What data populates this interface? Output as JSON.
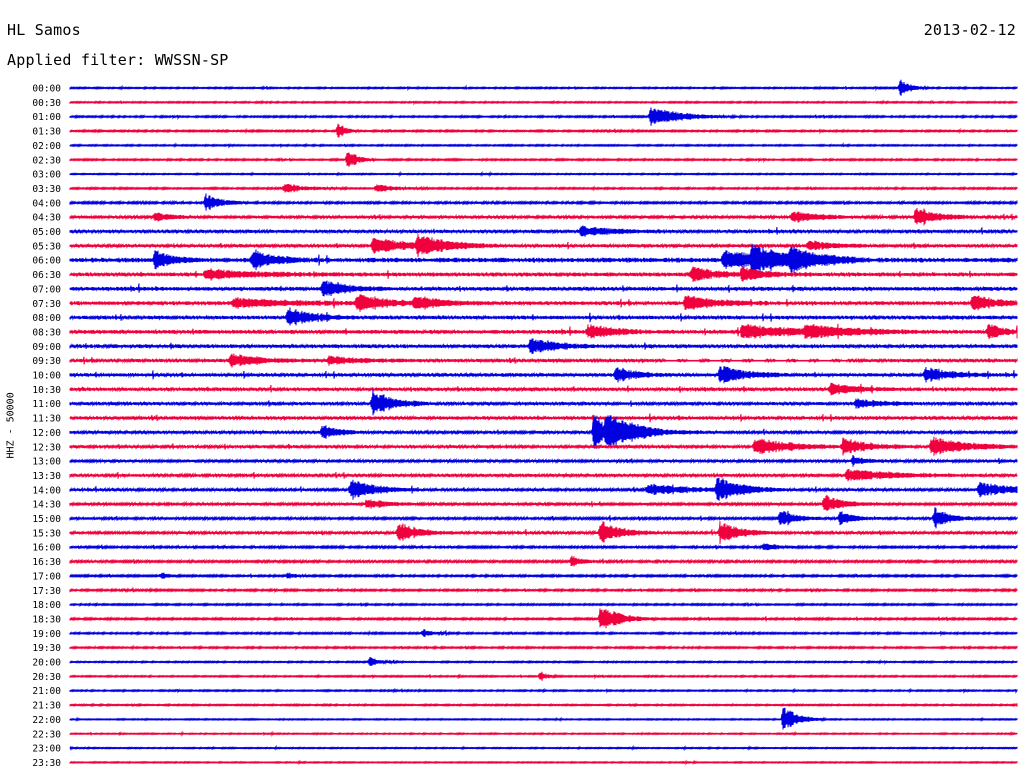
{
  "header": {
    "station": "HL Samos",
    "date": "2013-02-12",
    "filter_text": "Applied filter: WWSSN-SP"
  },
  "chart_data": {
    "type": "line",
    "title": "HL Samos",
    "subtitle": "Applied filter: WWSSN-SP",
    "ylabel": "HHZ - 50000",
    "xlabel": "",
    "grid": false,
    "trace_colors": [
      "#0000e0",
      "#f0003c"
    ],
    "row_labels": [
      "00:00",
      "00:30",
      "01:00",
      "01:30",
      "02:00",
      "02:30",
      "03:00",
      "03:30",
      "04:00",
      "04:30",
      "05:00",
      "05:30",
      "06:00",
      "06:30",
      "07:00",
      "07:30",
      "08:00",
      "08:30",
      "09:00",
      "09:30",
      "10:00",
      "10:30",
      "11:00",
      "11:30",
      "12:00",
      "12:30",
      "13:00",
      "13:30",
      "14:00",
      "14:30",
      "15:00",
      "15:30",
      "16:00",
      "16:30",
      "17:00",
      "17:30",
      "18:00",
      "18:30",
      "19:00",
      "19:30",
      "20:00",
      "20:30",
      "21:00",
      "21:30",
      "22:00",
      "22:30",
      "23:00",
      "23:30"
    ],
    "trace_minutes": 30,
    "noise_level": [
      0.6,
      0.6,
      0.7,
      0.7,
      0.6,
      0.7,
      0.5,
      0.7,
      0.9,
      1.2,
      1.3,
      1.3,
      2.0,
      1.6,
      1.6,
      1.6,
      1.5,
      1.6,
      1.5,
      1.4,
      1.4,
      1.4,
      1.3,
      1.4,
      1.2,
      1.2,
      1.1,
      1.2,
      1.1,
      1.1,
      1.0,
      1.1,
      0.9,
      1.0,
      0.8,
      0.8,
      0.7,
      0.8,
      0.7,
      0.7,
      0.6,
      0.6,
      0.6,
      0.6,
      0.5,
      0.5,
      0.5,
      0.5
    ],
    "events": [
      {
        "row": 0,
        "minute": 26.3,
        "amp": 9,
        "dur": 0.4
      },
      {
        "row": 2,
        "minute": 18.4,
        "amp": 10,
        "dur": 1.2
      },
      {
        "row": 3,
        "minute": 8.5,
        "amp": 8,
        "dur": 0.3
      },
      {
        "row": 5,
        "minute": 8.8,
        "amp": 10,
        "dur": 0.4
      },
      {
        "row": 7,
        "minute": 6.8,
        "amp": 5,
        "dur": 0.9
      },
      {
        "row": 7,
        "minute": 9.7,
        "amp": 4,
        "dur": 0.8
      },
      {
        "row": 8,
        "minute": 4.3,
        "amp": 9,
        "dur": 0.6
      },
      {
        "row": 9,
        "minute": 2.7,
        "amp": 5,
        "dur": 0.6
      },
      {
        "row": 9,
        "minute": 22.9,
        "amp": 6,
        "dur": 1.0
      },
      {
        "row": 9,
        "minute": 26.8,
        "amp": 11,
        "dur": 0.8
      },
      {
        "row": 10,
        "minute": 16.2,
        "amp": 5,
        "dur": 1.4
      },
      {
        "row": 11,
        "minute": 9.6,
        "amp": 8,
        "dur": 1.6
      },
      {
        "row": 11,
        "minute": 11.0,
        "amp": 9,
        "dur": 1.2
      },
      {
        "row": 11,
        "minute": 23.4,
        "amp": 5,
        "dur": 1.0
      },
      {
        "row": 12,
        "minute": 2.7,
        "amp": 11,
        "dur": 0.6
      },
      {
        "row": 12,
        "minute": 5.8,
        "amp": 11,
        "dur": 0.8
      },
      {
        "row": 12,
        "minute": 20.7,
        "amp": 10,
        "dur": 1.6
      },
      {
        "row": 12,
        "minute": 21.6,
        "amp": 11,
        "dur": 1.6
      },
      {
        "row": 12,
        "minute": 22.8,
        "amp": 8,
        "dur": 1.2
      },
      {
        "row": 13,
        "minute": 4.3,
        "amp": 5,
        "dur": 2.0
      },
      {
        "row": 13,
        "minute": 19.7,
        "amp": 8,
        "dur": 1.0
      },
      {
        "row": 13,
        "minute": 21.3,
        "amp": 6,
        "dur": 1.0
      },
      {
        "row": 14,
        "minute": 8.0,
        "amp": 8,
        "dur": 1.0
      },
      {
        "row": 15,
        "minute": 5.2,
        "amp": 5,
        "dur": 2.2
      },
      {
        "row": 15,
        "minute": 9.1,
        "amp": 9,
        "dur": 1.2
      },
      {
        "row": 15,
        "minute": 10.9,
        "amp": 6,
        "dur": 1.2
      },
      {
        "row": 15,
        "minute": 19.5,
        "amp": 8,
        "dur": 1.2
      },
      {
        "row": 15,
        "minute": 28.6,
        "amp": 8,
        "dur": 1.0
      },
      {
        "row": 16,
        "minute": 6.9,
        "amp": 10,
        "dur": 1.0
      },
      {
        "row": 17,
        "minute": 16.4,
        "amp": 8,
        "dur": 1.0
      },
      {
        "row": 17,
        "minute": 21.3,
        "amp": 7,
        "dur": 2.4
      },
      {
        "row": 17,
        "minute": 23.3,
        "amp": 6,
        "dur": 1.6
      },
      {
        "row": 17,
        "minute": 29.1,
        "amp": 8,
        "dur": 0.6
      },
      {
        "row": 18,
        "minute": 14.6,
        "amp": 9,
        "dur": 1.0
      },
      {
        "row": 19,
        "minute": 5.1,
        "amp": 7,
        "dur": 1.2
      },
      {
        "row": 19,
        "minute": 8.2,
        "amp": 4,
        "dur": 1.4
      },
      {
        "row": 20,
        "minute": 17.3,
        "amp": 8,
        "dur": 0.8
      },
      {
        "row": 20,
        "minute": 20.6,
        "amp": 10,
        "dur": 1.0
      },
      {
        "row": 20,
        "minute": 27.1,
        "amp": 8,
        "dur": 1.0
      },
      {
        "row": 21,
        "minute": 24.1,
        "amp": 6,
        "dur": 1.0
      },
      {
        "row": 22,
        "minute": 9.6,
        "amp": 14,
        "dur": 0.8
      },
      {
        "row": 22,
        "minute": 24.9,
        "amp": 5,
        "dur": 1.0
      },
      {
        "row": 24,
        "minute": 8.0,
        "amp": 8,
        "dur": 0.6
      },
      {
        "row": 24,
        "minute": 16.6,
        "amp": 17,
        "dur": 1.0
      },
      {
        "row": 24,
        "minute": 17.0,
        "amp": 12,
        "dur": 1.4
      },
      {
        "row": 25,
        "minute": 21.7,
        "amp": 9,
        "dur": 1.4
      },
      {
        "row": 25,
        "minute": 24.5,
        "amp": 9,
        "dur": 1.0
      },
      {
        "row": 25,
        "minute": 27.3,
        "amp": 10,
        "dur": 1.4
      },
      {
        "row": 26,
        "minute": 24.8,
        "amp": 5,
        "dur": 0.6
      },
      {
        "row": 27,
        "minute": 24.6,
        "amp": 6,
        "dur": 2.0
      },
      {
        "row": 28,
        "minute": 8.9,
        "amp": 11,
        "dur": 1.0
      },
      {
        "row": 28,
        "minute": 18.3,
        "amp": 6,
        "dur": 1.6
      },
      {
        "row": 28,
        "minute": 20.5,
        "amp": 12,
        "dur": 1.0
      },
      {
        "row": 28,
        "minute": 28.8,
        "amp": 7,
        "dur": 1.6
      },
      {
        "row": 29,
        "minute": 9.4,
        "amp": 5,
        "dur": 0.8
      },
      {
        "row": 29,
        "minute": 23.9,
        "amp": 9,
        "dur": 0.8
      },
      {
        "row": 30,
        "minute": 22.5,
        "amp": 9,
        "dur": 0.6
      },
      {
        "row": 30,
        "minute": 24.4,
        "amp": 7,
        "dur": 0.6
      },
      {
        "row": 30,
        "minute": 27.4,
        "amp": 11,
        "dur": 0.6
      },
      {
        "row": 31,
        "minute": 10.4,
        "amp": 11,
        "dur": 0.8
      },
      {
        "row": 31,
        "minute": 16.8,
        "amp": 13,
        "dur": 0.8
      },
      {
        "row": 31,
        "minute": 20.6,
        "amp": 12,
        "dur": 0.8
      },
      {
        "row": 32,
        "minute": 22.0,
        "amp": 4,
        "dur": 0.6
      },
      {
        "row": 33,
        "minute": 15.9,
        "amp": 6,
        "dur": 0.4
      },
      {
        "row": 34,
        "minute": 2.9,
        "amp": 4,
        "dur": 0.3
      },
      {
        "row": 34,
        "minute": 6.9,
        "amp": 4,
        "dur": 0.3
      },
      {
        "row": 37,
        "minute": 16.8,
        "amp": 14,
        "dur": 0.8
      },
      {
        "row": 38,
        "minute": 11.2,
        "amp": 4,
        "dur": 0.4
      },
      {
        "row": 40,
        "minute": 9.5,
        "amp": 5,
        "dur": 0.4
      },
      {
        "row": 41,
        "minute": 14.9,
        "amp": 5,
        "dur": 0.3
      },
      {
        "row": 44,
        "minute": 22.6,
        "amp": 14,
        "dur": 0.6
      }
    ],
    "gap": {
      "row": 19,
      "minute_start": 18.5,
      "minute_end": 24.6
    }
  }
}
